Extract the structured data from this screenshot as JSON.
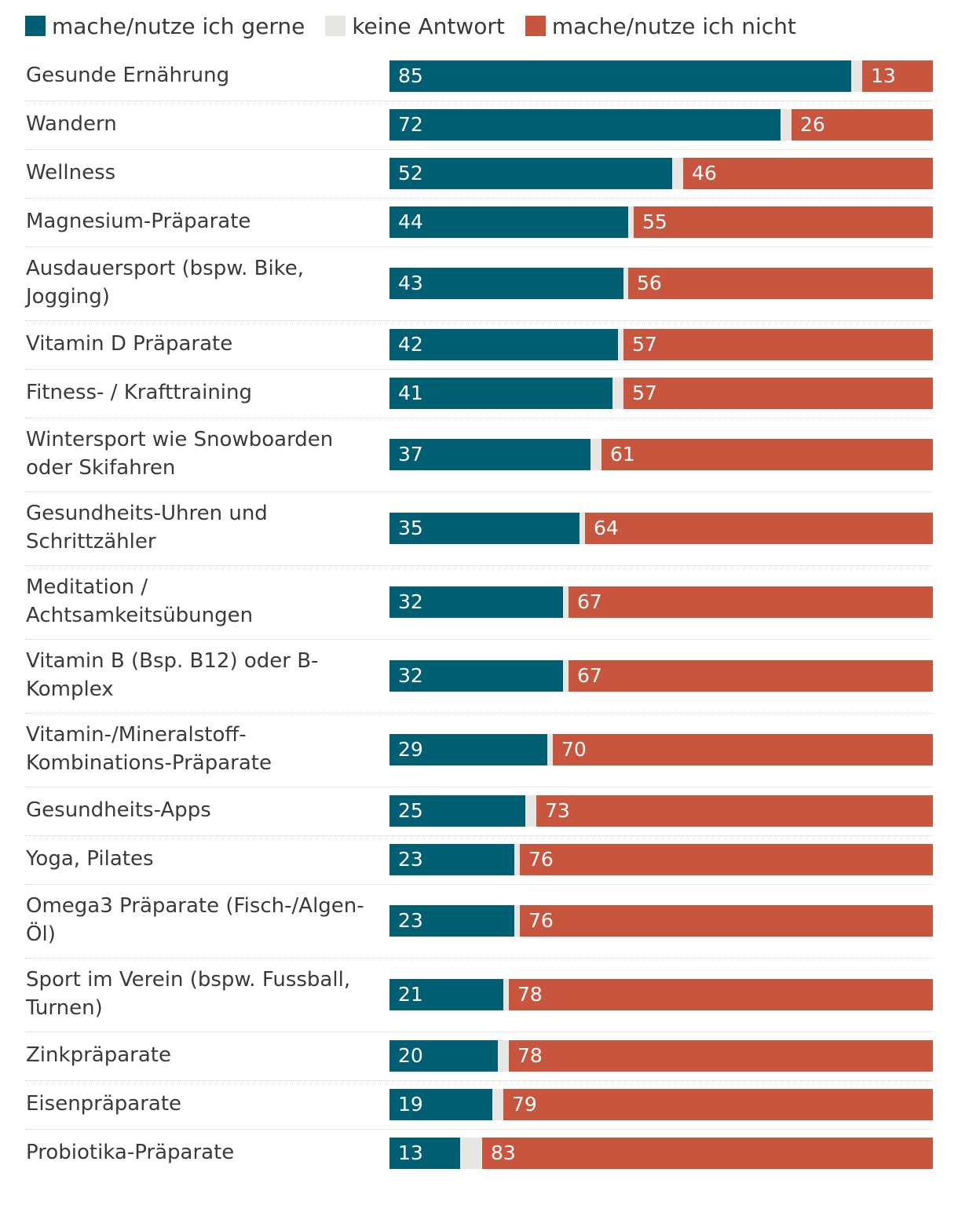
{
  "colors": {
    "gerne": "#005f73",
    "keine": "#e8e6e3",
    "nicht": "#c8553d"
  },
  "chart_data": {
    "type": "bar",
    "orientation": "horizontal",
    "stacked": true,
    "legend_position": "top-left",
    "grid": false,
    "xlim": [
      0,
      100
    ],
    "categories": [
      "Gesunde Ernährung",
      "Wandern",
      "Wellness",
      "Magnesium-Präparate",
      "Ausdauersport (bspw. Bike, Jogging)",
      "Vitamin D Präparate",
      "Fitness- / Krafttraining",
      "Wintersport wie Snowboarden oder Skifahren",
      "Gesundheits-Uhren und Schrittzähler",
      "Meditation / Achtsamkeitsübungen",
      "Vitamin B (Bsp. B12) oder B-Komplex",
      "Vitamin-/Mineralstoff-Kombinations-Präparate",
      "Gesundheits-Apps",
      "Yoga, Pilates",
      "Omega3 Präparate (Fisch-/Algen-Öl)",
      "Sport im Verein (bspw. Fussball, Turnen)",
      "Zinkpräparate",
      "Eisenpräparate",
      "Probiotika-Präparate"
    ],
    "series": [
      {
        "name": "mache/nutze ich gerne",
        "values": [
          85,
          72,
          52,
          44,
          43,
          42,
          41,
          37,
          35,
          32,
          32,
          29,
          25,
          23,
          23,
          21,
          20,
          19,
          13
        ]
      },
      {
        "name": "keine Antwort",
        "values": [
          2,
          2,
          2,
          1,
          1,
          1,
          2,
          2,
          1,
          1,
          1,
          1,
          2,
          1,
          1,
          1,
          2,
          2,
          4
        ]
      },
      {
        "name": "mache/nutze ich nicht",
        "values": [
          13,
          26,
          46,
          55,
          56,
          57,
          57,
          61,
          64,
          67,
          67,
          70,
          73,
          76,
          76,
          78,
          78,
          79,
          83
        ]
      }
    ]
  }
}
